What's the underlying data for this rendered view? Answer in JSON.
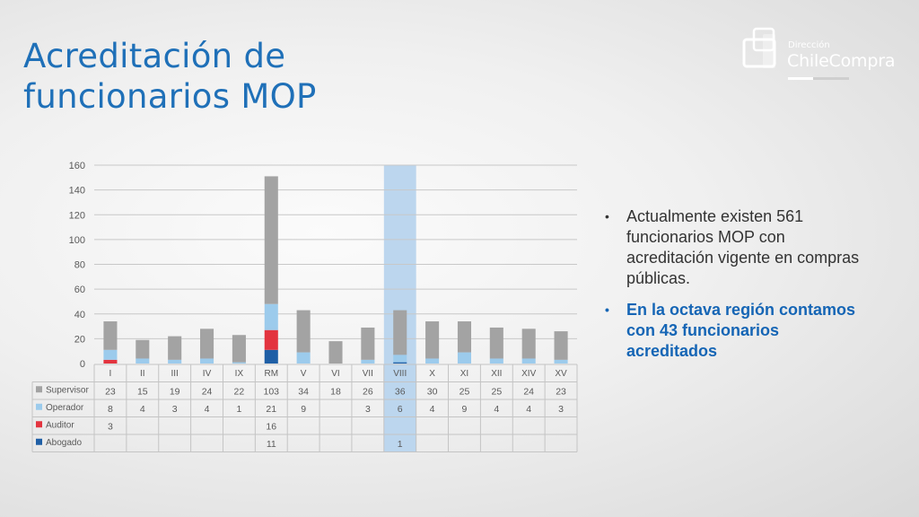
{
  "slide": {
    "title_line1": "Acreditación de",
    "title_line2": "funcionarios MOP"
  },
  "logo": {
    "small": "Dirección",
    "big": "ChileCompra"
  },
  "bullets": [
    {
      "text": "Actualmente existen 561 funcionarios MOP con acreditación vigente en compras públicas.",
      "highlight": false
    },
    {
      "text": "En la octava región contamos con 43 funcionarios acreditados",
      "highlight": true
    }
  ],
  "chart_data": {
    "type": "bar",
    "stacked": true,
    "categories": [
      "I",
      "II",
      "III",
      "IV",
      "IX",
      "RM",
      "V",
      "VI",
      "VII",
      "VIII",
      "X",
      "XI",
      "XII",
      "XIV",
      "XV"
    ],
    "ylim": [
      0,
      160
    ],
    "yticks": [
      0,
      20,
      40,
      60,
      80,
      100,
      120,
      140,
      160
    ],
    "grid": true,
    "legend": "table-left",
    "highlight_category": "VIII",
    "series": [
      {
        "name": "Abogado",
        "color": "#1f5fa6",
        "values": [
          null,
          null,
          null,
          null,
          null,
          11,
          null,
          null,
          null,
          1,
          null,
          null,
          null,
          null,
          null
        ]
      },
      {
        "name": "Auditor",
        "color": "#e3343f",
        "values": [
          3,
          null,
          null,
          null,
          null,
          16,
          null,
          null,
          null,
          null,
          null,
          null,
          null,
          null,
          null
        ]
      },
      {
        "name": "Operador",
        "color": "#9ccbec",
        "values": [
          8,
          4,
          3,
          4,
          1,
          21,
          9,
          null,
          3,
          6,
          4,
          9,
          4,
          4,
          3
        ]
      },
      {
        "name": "Supervisor",
        "color": "#a3a3a3",
        "values": [
          23,
          15,
          19,
          24,
          22,
          103,
          34,
          18,
          26,
          36,
          30,
          25,
          25,
          24,
          23
        ]
      }
    ],
    "table_order": [
      "Supervisor",
      "Operador",
      "Auditor",
      "Abogado"
    ]
  }
}
